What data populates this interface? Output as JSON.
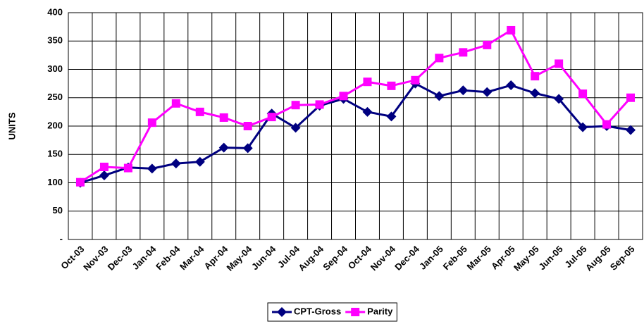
{
  "chart_data": {
    "type": "line",
    "y_label": "UNITS",
    "categories": [
      "Oct-03",
      "Nov-03",
      "Dec-03",
      "Jan-04",
      "Feb-04",
      "Mar-04",
      "Apr-04",
      "May-04",
      "Jun-04",
      "Jul-04",
      "Aug-04",
      "Sep-04",
      "Oct-04",
      "Nov-04",
      "Dec-04",
      "Jan-05",
      "Feb-05",
      "Mar-05",
      "Apr-05",
      "May-05",
      "Jun-05",
      "Jul-05",
      "Aug-05",
      "Sep-05"
    ],
    "series": [
      {
        "name": "CPT-Gross",
        "color": "#000080",
        "marker": "diamond",
        "values": [
          100,
          113,
          127,
          125,
          134,
          137,
          162,
          161,
          222,
          197,
          236,
          248,
          225,
          217,
          275,
          253,
          263,
          260,
          272,
          258,
          248,
          198,
          200,
          193
        ]
      },
      {
        "name": "Parity",
        "color": "#ff00ff",
        "marker": "square",
        "values": [
          101,
          128,
          126,
          206,
          240,
          225,
          215,
          200,
          216,
          237,
          238,
          253,
          278,
          271,
          281,
          320,
          330,
          343,
          369,
          288,
          310,
          257,
          203,
          250
        ]
      }
    ],
    "ylim": [
      0,
      400
    ],
    "yticks": [
      {
        "value": 0,
        "label": "-"
      },
      50,
      100,
      150,
      200,
      250,
      300,
      350,
      400
    ],
    "grid": true,
    "legend": "bottom"
  }
}
